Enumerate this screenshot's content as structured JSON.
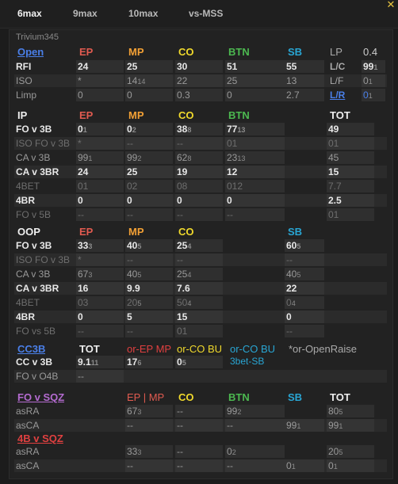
{
  "tabs": [
    {
      "label": "6max",
      "active": true
    },
    {
      "label": "9max"
    },
    {
      "label": "10max"
    },
    {
      "label": "vs-MSS"
    }
  ],
  "player": "Trivium345",
  "open": {
    "title": "Open",
    "headers": [
      "EP",
      "MP",
      "CO",
      "BTN",
      "SB"
    ],
    "rows": [
      {
        "label": "RFI",
        "vals": [
          "24",
          "25",
          "30",
          "51",
          "55"
        ],
        "side": [
          "L/C",
          "99",
          "1"
        ],
        "strong": true
      },
      {
        "label": "ISO",
        "vals": [
          "*",
          "14",
          "22",
          "25",
          "13"
        ],
        "subs": [
          "",
          "14",
          "",
          "",
          ""
        ],
        "side": [
          "L/F",
          "0",
          "1"
        ]
      },
      {
        "label": "Limp",
        "vals": [
          "0",
          "0",
          "0.3",
          "0",
          "2.7"
        ],
        "side": [
          "L/R",
          "0",
          "1"
        ]
      }
    ],
    "lp": {
      "label": "LP",
      "value": "0.4"
    }
  },
  "ip": {
    "title": "IP",
    "headers": [
      "EP",
      "MP",
      "CO",
      "BTN",
      "TOT"
    ],
    "rows": [
      {
        "label": "FO v 3B",
        "vals": [
          "0",
          "0",
          "38",
          "77",
          ""
        ],
        "subs": [
          "1",
          "2",
          "8",
          "13",
          ""
        ],
        "tot": "49",
        "strong": true
      },
      {
        "label": "ISO FO v 3B",
        "vals": [
          "*",
          "--",
          "--",
          "01",
          ""
        ],
        "tot": "01",
        "faint": true
      },
      {
        "label": "CA v 3B",
        "vals": [
          "99",
          "99",
          "62",
          "23",
          ""
        ],
        "subs": [
          "1",
          "2",
          "8",
          "13",
          ""
        ],
        "tot": "45"
      },
      {
        "label": "CA v 3BR",
        "vals": [
          "24",
          "25",
          "19",
          "12",
          ""
        ],
        "tot": "15",
        "strong": true
      },
      {
        "label": "4BET",
        "vals": [
          "01",
          "02",
          "08",
          "012",
          ""
        ],
        "tot": "7.7",
        "faint": true
      },
      {
        "label": "4BR",
        "vals": [
          "0",
          "0",
          "0",
          "0",
          ""
        ],
        "tot": "2.5",
        "strong": true
      },
      {
        "label": "FO v 5B",
        "vals": [
          "--",
          "--",
          "--",
          "--",
          ""
        ],
        "tot": "01",
        "faint": true
      }
    ]
  },
  "oop": {
    "title": "OOP",
    "headers": [
      "EP",
      "MP",
      "CO",
      "SB"
    ],
    "rows": [
      {
        "label": "FO v 3B",
        "vals": [
          "33",
          "40",
          "25",
          "60"
        ],
        "subs": [
          "3",
          "5",
          "4",
          "5"
        ],
        "strong": true
      },
      {
        "label": "ISO FO v 3B",
        "vals": [
          "*",
          "--",
          "--",
          "--"
        ],
        "faint": true
      },
      {
        "label": "CA v 3B",
        "vals": [
          "67",
          "40",
          "25",
          "40"
        ],
        "subs": [
          "3",
          "5",
          "4",
          "5"
        ]
      },
      {
        "label": "CA v 3BR",
        "vals": [
          "16",
          "9.9",
          "7.6",
          "22"
        ],
        "strong": true
      },
      {
        "label": "4BET",
        "vals": [
          "03",
          "20",
          "50",
          "0"
        ],
        "subs": [
          "",
          "5",
          "4",
          "4"
        ],
        "faint": true
      },
      {
        "label": "4BR",
        "vals": [
          "0",
          "5",
          "15",
          "0"
        ],
        "strong": true
      },
      {
        "label": "FO vs 5B",
        "vals": [
          "--",
          "--",
          "01",
          "--"
        ],
        "faint": true
      }
    ]
  },
  "cc3b": {
    "title": "CC3B",
    "headers": [
      "TOT",
      "or-EP MP",
      "or-CO BU",
      "or-CO BU",
      "*or-OpenRaise"
    ],
    "note2": "3bet-SB",
    "rows": [
      {
        "label": "CC v 3B",
        "vals": [
          "9.1",
          "17",
          "0",
          "",
          ""
        ],
        "subs": [
          "11",
          "6",
          "5",
          "",
          ""
        ],
        "strong": true
      },
      {
        "label": "FO v O4B",
        "vals": [
          "--",
          "",
          "",
          "",
          ""
        ]
      }
    ]
  },
  "sqz": {
    "title": "FO v SQZ",
    "headers": [
      "EP | MP",
      "CO",
      "BTN",
      "SB",
      "TOT"
    ],
    "rows": [
      {
        "label": "asRA",
        "vals": [
          "67",
          "--",
          "99",
          "",
          "80"
        ],
        "subs": [
          "3",
          "",
          "2",
          "",
          "5"
        ]
      },
      {
        "label": "asCA",
        "vals": [
          "--",
          "--",
          "--",
          "99",
          "99"
        ],
        "subs": [
          "",
          "",
          "",
          "1",
          "1"
        ]
      }
    ],
    "title2": "4B v SQZ",
    "rows2": [
      {
        "label": "asRA",
        "vals": [
          "33",
          "--",
          "0",
          "",
          "20"
        ],
        "subs": [
          "3",
          "",
          "2",
          "",
          "5"
        ]
      },
      {
        "label": "asCA",
        "vals": [
          "--",
          "--",
          "--",
          "0",
          "0"
        ],
        "subs": [
          "",
          "",
          "",
          "1",
          "1"
        ]
      }
    ]
  }
}
